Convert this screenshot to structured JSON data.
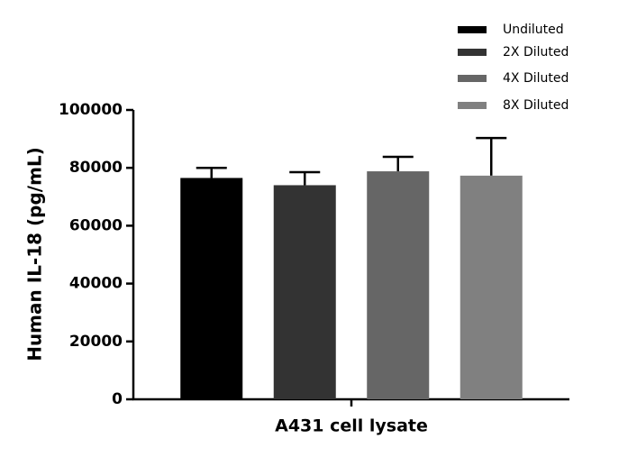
{
  "chart_data": {
    "type": "bar",
    "y_label": "Human IL-18 (pg/mL)",
    "categories": [
      "A431 cell lysate"
    ],
    "series": [
      {
        "name": "Undiluted",
        "color": "#000000",
        "values": [
          76500
        ],
        "errors": [
          3500
        ]
      },
      {
        "name": "2X Diluted",
        "color": "#333333",
        "values": [
          74000
        ],
        "errors": [
          4500
        ]
      },
      {
        "name": "4X Diluted",
        "color": "#666666",
        "values": [
          78800
        ],
        "errors": [
          5000
        ]
      },
      {
        "name": "8X Diluted",
        "color": "#808080",
        "values": [
          77300
        ],
        "errors": [
          13000
        ]
      }
    ],
    "ylim": [
      0,
      100000
    ],
    "yticks": [
      0,
      20000,
      40000,
      60000,
      80000,
      100000
    ],
    "legend": "top-right"
  }
}
